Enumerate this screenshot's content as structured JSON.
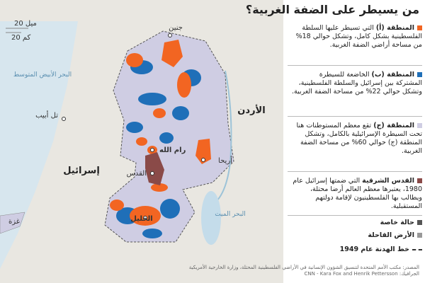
{
  "header": {
    "title": "من يسيطر على الضفة الغربية؟"
  },
  "scale": {
    "miles": "20 ميل",
    "km": "20 كم"
  },
  "map_labels": {
    "jenin": "جنين",
    "sea": "البحر الأبيض المتوسط",
    "tel_aviv": "تل أبيب",
    "israel": "إسرائيل",
    "ramallah": "رام الله",
    "jerusalem": "القدس",
    "hebron": "الخليل",
    "gaza": "غزة",
    "jordan": "الأردن",
    "jericho": "أريحا",
    "dead_sea": "البحر الميت"
  },
  "legend": [
    {
      "title": "المنطقة (أ)",
      "text": "التي تسيطر عليها السلطة الفلسطينية بشكل كامل، وتشكل حوالي 18% من مساحة أراضي الضفة الغربية."
    },
    {
      "title": "المنطقة (ب)",
      "text": "الخاضعة للسيطرة المشتركة بين إسرائيل والسلطة الفلسطينية، وتشكل حوالي 22% من مساحة الضفة الغربية."
    },
    {
      "title": "المنطقة (ج)",
      "text": "تقع معظم المستوطنات هنا تحت السيطرة الإسرائيلية بالكامل، وتشكل المنطقة (ج) حوالي 60% من مساحة الضفة الغربية."
    },
    {
      "title": "القدس الشرقية",
      "text": "التي ضمتها إسرائيل عام 1980، يعتبرها معظم العالم أرضا محتلة، ويطالب بها الفلسطينيون لإقامة دولتهم المستقبلية."
    },
    {
      "title": "حالة خاصة"
    },
    {
      "title": "الأرض القاحلة"
    },
    {
      "title": "خط الهدنة عام 1949"
    }
  ],
  "source": {
    "text": "المصدر: مكتب الأمم المتحدة لتنسيق الشؤون الإنسانية في الأراضي الفلسطينية المحتلة، وزارة الخارجية الأمريكية",
    "credit_label": "الجرافيك:",
    "credit": "CNN - Kara Fox and Henrik Pettersson"
  }
}
